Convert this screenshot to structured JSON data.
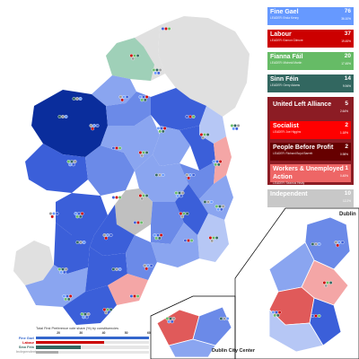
{
  "parties": [
    {
      "name": "Fine Gael",
      "leader": "LEADER: Enda Kenny",
      "seats": "76",
      "pct": "36.10%",
      "color": "#6699ff"
    },
    {
      "name": "Labour",
      "leader": "LEADER: Eamon Gilmore",
      "seats": "37",
      "pct": "19.45%",
      "color": "#cc0000"
    },
    {
      "name": "Fianna Fáil",
      "leader": "LEADER: Micheál Martin",
      "seats": "20",
      "pct": "17.45%",
      "color": "#66bb66"
    },
    {
      "name": "Sinn Féin",
      "leader": "LEADER: Gerry Adams",
      "seats": "14",
      "pct": "9.94%",
      "color": "#326760"
    }
  ],
  "alliance": {
    "name": "United Left Alliance",
    "seats": "5",
    "pct": "2.64%",
    "color": "#8c1c24",
    "members": [
      {
        "name": "Socialist",
        "leader": "LEADER: Joe Higgins",
        "seats": "2",
        "pct": "1.18%",
        "color": "#ff0000"
      },
      {
        "name": "People Before Profit",
        "leader": "LEADER: Richard Boyd Barrett",
        "seats": "2",
        "pct": "0.98%",
        "color": "#660000"
      },
      {
        "name": "Workers & Unemployed Action",
        "leader": "LEADER: Seamus Healy",
        "seats": "1",
        "pct": "0.45%",
        "color": "#ee6666"
      }
    ]
  },
  "independent": {
    "name": "Independent",
    "leader": "",
    "seats": "10",
    "pct": "12.2%",
    "color": "#c8c8c8"
  },
  "insets": {
    "dublin": "Dublin",
    "city": "Dublin City Center"
  },
  "chart_data": {
    "type": "bar",
    "title": "Total First Preference vote share (%) by constituencies",
    "axis_ticks": [
      "20",
      "30",
      "40",
      "50",
      "60"
    ],
    "xlim": [
      10,
      60
    ],
    "series": [
      {
        "name": "Fine Gael",
        "color": "#3366cc",
        "values": [
          60
        ]
      },
      {
        "name": "Labour",
        "color": "#cc0000",
        "values": [
          40
        ]
      },
      {
        "name": "Sinn Féin",
        "color": "#326760",
        "values": [
          30
        ]
      },
      {
        "name": "Independent",
        "color": "#aaaaaa",
        "values": [
          20
        ]
      }
    ]
  },
  "colors": {
    "sea_land_bg": "#e0e0e0",
    "fg_strong": "#0a2d9c",
    "fg_mid": "#3b5fd9",
    "fg_light": "#8aa5f0",
    "fg_pale": "#b6c7f5",
    "ff": "#9fd0b8",
    "lab_light": "#f4a6a6",
    "lab": "#e05a5a",
    "indep": "#c0c0c0"
  }
}
